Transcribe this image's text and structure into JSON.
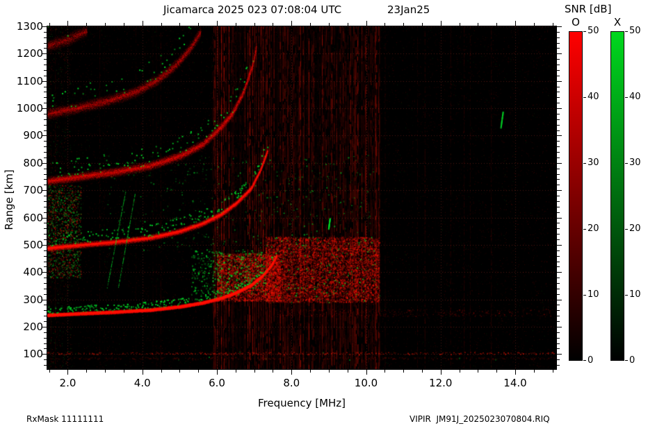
{
  "footer": {
    "left": "RxMask 11111111",
    "right": "VIPIR  JM91J_2025023070804.RIQ"
  },
  "chart_data": {
    "type": "heatmap",
    "title": "Jicamarca 2025 023 07:08:04 UTC",
    "date_label": "23Jan25",
    "xlabel": "Frequency [MHz]",
    "ylabel": "Range [km]",
    "xlim": [
      1.45,
      15.1
    ],
    "ylim": [
      45,
      1300
    ],
    "x_ticks": [
      2,
      4,
      6,
      8,
      10,
      12,
      14
    ],
    "x_tick_labels": [
      "2.0",
      "4.0",
      "6.0",
      "8.0",
      "10.0",
      "12.0",
      "14.0"
    ],
    "x_minor_step": 0.5,
    "y_ticks": [
      100,
      200,
      300,
      400,
      500,
      600,
      700,
      800,
      900,
      1000,
      1100,
      1200,
      1300
    ],
    "y_minor_step": 20,
    "grid": true,
    "plot_bg": "#000000",
    "o_trace_color": "#ff1400",
    "x_trace_color": "#00dc28",
    "colorbar": {
      "title": "SNR [dB]",
      "o_label": "O",
      "x_label": "X",
      "o_color": "#ff0000",
      "x_color": "#00d81e",
      "min": 0,
      "max": 50,
      "ticks": [
        0,
        10,
        20,
        30,
        40,
        50
      ]
    },
    "echo_traces": [
      {
        "name": "F-region O-mode 1st hop",
        "mode": "O",
        "intensity": 0.95,
        "spread": 3.5,
        "density": 26,
        "green_prob": 0.3,
        "core": true,
        "points": [
          [
            1.45,
            243
          ],
          [
            2.2,
            248
          ],
          [
            3.2,
            254
          ],
          [
            4.2,
            262
          ],
          [
            5.0,
            274
          ],
          [
            5.6,
            288
          ],
          [
            6.1,
            305
          ],
          [
            6.5,
            325
          ],
          [
            6.9,
            352
          ],
          [
            7.2,
            385
          ],
          [
            7.45,
            425
          ],
          [
            7.6,
            462
          ]
        ]
      },
      {
        "name": "F-region O-mode 2nd hop",
        "mode": "O",
        "intensity": 0.55,
        "spread": 6,
        "density": 22,
        "green_prob": 0.22,
        "core": true,
        "points": [
          [
            1.45,
            488
          ],
          [
            2.2,
            498
          ],
          [
            3.2,
            510
          ],
          [
            4.2,
            526
          ],
          [
            5.0,
            550
          ],
          [
            5.6,
            578
          ],
          [
            6.1,
            612
          ],
          [
            6.5,
            652
          ],
          [
            6.9,
            706
          ],
          [
            7.15,
            772
          ],
          [
            7.35,
            845
          ]
        ]
      },
      {
        "name": "F-region O-mode 3rd hop",
        "mode": "O",
        "intensity": 0.42,
        "spread": 9,
        "density": 22,
        "green_prob": 0.14,
        "core": false,
        "points": [
          [
            1.45,
            733
          ],
          [
            2.2,
            748
          ],
          [
            3.2,
            766
          ],
          [
            4.2,
            790
          ],
          [
            5.0,
            826
          ],
          [
            5.6,
            868
          ],
          [
            6.0,
            918
          ],
          [
            6.4,
            980
          ],
          [
            6.7,
            1060
          ],
          [
            6.95,
            1160
          ],
          [
            7.05,
            1230
          ]
        ]
      },
      {
        "name": "F-region O-mode 4th hop",
        "mode": "O",
        "intensity": 0.34,
        "spread": 11,
        "density": 20,
        "green_prob": 0.1,
        "core": false,
        "points": [
          [
            1.45,
            980
          ],
          [
            2.2,
            1000
          ],
          [
            3.0,
            1025
          ],
          [
            3.8,
            1060
          ],
          [
            4.4,
            1105
          ],
          [
            4.9,
            1160
          ],
          [
            5.3,
            1225
          ],
          [
            5.55,
            1280
          ]
        ]
      },
      {
        "name": "F-region O-mode 5th hop",
        "mode": "O",
        "intensity": 0.3,
        "spread": 12,
        "density": 18,
        "green_prob": 0.08,
        "core": false,
        "points": [
          [
            1.45,
            1228
          ],
          [
            2.0,
            1252
          ],
          [
            2.5,
            1285
          ]
        ]
      }
    ],
    "noise": {
      "seed": 20250123,
      "background_speckle": {
        "count": 24000,
        "green_fraction": 0.09,
        "max_alpha": 0.22
      },
      "sparse_stripes": {
        "count": 26,
        "max_alpha": 0.15
      },
      "rfi_band": {
        "f_range": [
          5.85,
          10.35
        ],
        "stripe_step": 0.033,
        "max_alpha": 0.5
      },
      "e_layer_rows": [
        {
          "range_km": 104,
          "alpha": 0.55
        },
        {
          "range_km": 86,
          "alpha": 0.22
        }
      ],
      "f_row": {
        "f_range": [
          7.6,
          15.05
        ],
        "r_range": [
          238,
          266
        ],
        "count": 550
      },
      "spread_region": {
        "f_range": [
          7.3,
          10.35
        ],
        "r_range": [
          290,
          530
        ],
        "count": 8500,
        "green_count": 300
      },
      "f_peak_blob": {
        "f_range": [
          6.0,
          7.7
        ],
        "r_range": [
          295,
          470
        ],
        "count": 4200
      },
      "mid_green_blob": {
        "f_range": [
          5.3,
          7.3
        ],
        "r_range": [
          320,
          480
        ],
        "count": 620
      },
      "upper_green_scatter": {
        "f_range": [
          3.0,
          10.2
        ],
        "r_range": [
          480,
          830
        ],
        "count": 520
      },
      "left_patch": {
        "f_range": [
          1.45,
          2.35
        ],
        "r_range": [
          380,
          720
        ],
        "count": 1400,
        "green_fraction": 0.55
      },
      "left_column": {
        "f_range": [
          1.45,
          2.1
        ],
        "count": 900
      },
      "green_streaks": [
        [
          3.05,
          345,
          3.55,
          700
        ],
        [
          3.35,
          345,
          3.8,
          690
        ]
      ],
      "green_marks": [
        [
          13.6,
          930,
          13.66,
          990
        ],
        [
          8.98,
          560,
          9.02,
          600
        ]
      ]
    }
  }
}
